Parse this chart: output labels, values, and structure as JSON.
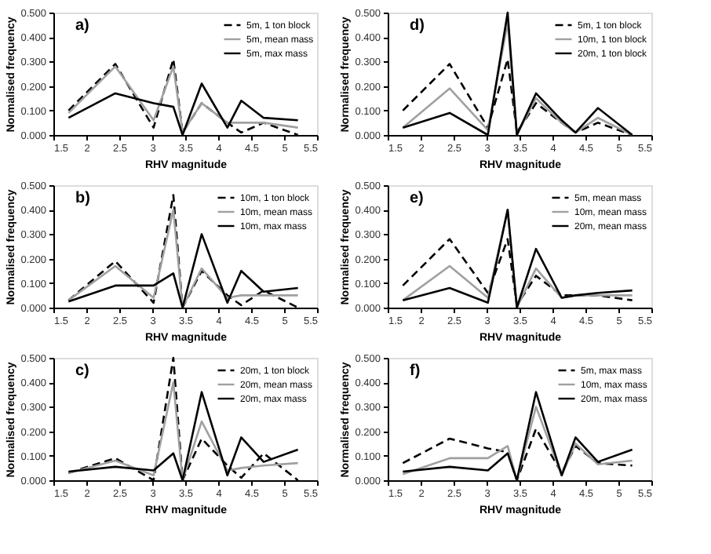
{
  "chart_data": [
    {
      "type": "line",
      "annotations": [
        {
          "text": "a)"
        }
      ],
      "xlabel": "RHV magnitude",
      "ylabel": "Normalised frequency",
      "x": [
        1.73,
        2.44,
        3.02,
        3.32,
        3.46,
        3.75,
        4.14,
        4.35,
        4.69,
        5.21
      ],
      "xlim": [
        1.5,
        5.5
      ],
      "xticks": [
        1.5,
        2,
        2.5,
        3,
        3.5,
        4,
        4.5,
        5,
        5.5
      ],
      "ylim": [
        0,
        0.5
      ],
      "yticks": [
        {
          "value": 0,
          "label": "0.000"
        },
        {
          "value": 0.1,
          "label": "0.100"
        },
        {
          "value": 0.2,
          "label": "0.200"
        },
        {
          "value": 0.3,
          "label": "0.300"
        },
        {
          "value": 0.4,
          "label": "0.400"
        },
        {
          "value": 0.5,
          "label": "0.500"
        }
      ],
      "grid": false,
      "legend": "top right",
      "series": [
        {
          "name": "5m, 1 ton block",
          "color": "#000000",
          "line_style": "dashed",
          "values": [
            0.1,
            0.29,
            0.03,
            0.31,
            0.01,
            0.13,
            0.05,
            0.01,
            0.05,
            0.0
          ]
        },
        {
          "name": "5m, mean mass",
          "color": "#a0a0a0",
          "line_style": "solid",
          "values": [
            0.09,
            0.28,
            0.06,
            0.28,
            0.01,
            0.13,
            0.05,
            0.05,
            0.05,
            0.03
          ]
        },
        {
          "name": "5m, max mass",
          "color": "#000000",
          "line_style": "solid",
          "values": [
            0.07,
            0.17,
            0.13,
            0.115,
            0.0,
            0.21,
            0.03,
            0.14,
            0.07,
            0.06
          ]
        }
      ]
    },
    {
      "type": "line",
      "annotations": [
        {
          "text": "d)"
        }
      ],
      "xlabel": "RHV magnitude",
      "ylabel": "Normalised frequency",
      "x": [
        1.73,
        2.44,
        3.02,
        3.32,
        3.46,
        3.75,
        4.14,
        4.35,
        4.69,
        5.21
      ],
      "xlim": [
        1.5,
        5.5
      ],
      "xticks": [
        1.5,
        2,
        2.5,
        3,
        3.5,
        4,
        4.5,
        5,
        5.5
      ],
      "ylim": [
        0,
        0.5
      ],
      "yticks": [
        {
          "value": 0,
          "label": "0.000"
        },
        {
          "value": 0.1,
          "label": "0.100"
        },
        {
          "value": 0.2,
          "label": "0.200"
        },
        {
          "value": 0.3,
          "label": "0.300"
        },
        {
          "value": 0.4,
          "label": "0.400"
        },
        {
          "value": 0.5,
          "label": "0.500"
        }
      ],
      "grid": false,
      "legend": "top right",
      "series": [
        {
          "name": "5m, 1 ton block",
          "color": "#000000",
          "line_style": "dashed",
          "values": [
            0.1,
            0.29,
            0.03,
            0.31,
            0.01,
            0.13,
            0.05,
            0.01,
            0.05,
            0.0
          ]
        },
        {
          "name": "10m, 1 ton block",
          "color": "#a0a0a0",
          "line_style": "solid",
          "values": [
            0.03,
            0.19,
            0.02,
            0.46,
            0.0,
            0.15,
            0.05,
            0.01,
            0.07,
            0.0
          ]
        },
        {
          "name": "20m, 1 ton block",
          "color": "#000000",
          "line_style": "solid",
          "values": [
            0.03,
            0.09,
            0.0,
            0.5,
            0.0,
            0.17,
            0.06,
            0.01,
            0.11,
            0.0
          ]
        }
      ]
    },
    {
      "type": "line",
      "annotations": [
        {
          "text": "b)"
        }
      ],
      "xlabel": "RHV magnitude",
      "ylabel": "Normalised frequency",
      "x": [
        1.73,
        2.44,
        3.02,
        3.32,
        3.46,
        3.75,
        4.14,
        4.35,
        4.69,
        5.21
      ],
      "xlim": [
        1.5,
        5.5
      ],
      "xticks": [
        1.5,
        2,
        2.5,
        3,
        3.5,
        4,
        4.5,
        5,
        5.5
      ],
      "ylim": [
        0,
        0.5
      ],
      "yticks": [
        {
          "value": 0,
          "label": "0.000"
        },
        {
          "value": 0.1,
          "label": "0.100"
        },
        {
          "value": 0.2,
          "label": "0.200"
        },
        {
          "value": 0.3,
          "label": "0.300"
        },
        {
          "value": 0.4,
          "label": "0.400"
        },
        {
          "value": 0.5,
          "label": "0.500"
        }
      ],
      "grid": false,
      "legend": "top right",
      "series": [
        {
          "name": "10m, 1 ton block",
          "color": "#000000",
          "line_style": "dashed",
          "values": [
            0.03,
            0.19,
            0.02,
            0.46,
            0.0,
            0.15,
            0.05,
            0.01,
            0.07,
            0.0
          ]
        },
        {
          "name": "10m, mean mass",
          "color": "#a0a0a0",
          "line_style": "solid",
          "values": [
            0.03,
            0.17,
            0.04,
            0.4,
            0.0,
            0.16,
            0.04,
            0.05,
            0.05,
            0.05
          ]
        },
        {
          "name": "10m, max mass",
          "color": "#000000",
          "line_style": "solid",
          "values": [
            0.025,
            0.09,
            0.09,
            0.14,
            0.0,
            0.3,
            0.02,
            0.15,
            0.065,
            0.08
          ]
        }
      ]
    },
    {
      "type": "line",
      "annotations": [
        {
          "text": "e)"
        }
      ],
      "xlabel": "RHV magnitude",
      "ylabel": "Normalised frequency",
      "x": [
        1.73,
        2.44,
        3.02,
        3.32,
        3.46,
        3.75,
        4.14,
        4.35,
        4.69,
        5.21
      ],
      "xlim": [
        1.5,
        5.5
      ],
      "xticks": [
        1.5,
        2,
        2.5,
        3,
        3.5,
        4,
        4.5,
        5,
        5.5
      ],
      "ylim": [
        0,
        0.5
      ],
      "yticks": [
        {
          "value": 0,
          "label": "0.000"
        },
        {
          "value": 0.1,
          "label": "0.100"
        },
        {
          "value": 0.2,
          "label": "0.200"
        },
        {
          "value": 0.3,
          "label": "0.300"
        },
        {
          "value": 0.4,
          "label": "0.400"
        },
        {
          "value": 0.5,
          "label": "0.500"
        }
      ],
      "grid": false,
      "legend": "top right",
      "series": [
        {
          "name": "5m, mean mass",
          "color": "#000000",
          "line_style": "dashed",
          "values": [
            0.09,
            0.28,
            0.06,
            0.28,
            0.01,
            0.13,
            0.05,
            0.05,
            0.05,
            0.03
          ]
        },
        {
          "name": "10m, mean mass",
          "color": "#a0a0a0",
          "line_style": "solid",
          "values": [
            0.03,
            0.17,
            0.04,
            0.4,
            0.0,
            0.16,
            0.04,
            0.05,
            0.05,
            0.05
          ]
        },
        {
          "name": "20m, mean mass",
          "color": "#000000",
          "line_style": "solid",
          "values": [
            0.03,
            0.08,
            0.02,
            0.4,
            0.0,
            0.24,
            0.04,
            0.05,
            0.06,
            0.07
          ]
        }
      ]
    },
    {
      "type": "line",
      "annotations": [
        {
          "text": "c)"
        }
      ],
      "xlabel": "RHV magnitude",
      "ylabel": "Normalised frequency",
      "x": [
        1.73,
        2.44,
        3.02,
        3.32,
        3.46,
        3.75,
        4.14,
        4.35,
        4.69,
        5.21
      ],
      "xlim": [
        1.5,
        5.5
      ],
      "xticks": [
        1.5,
        2,
        2.5,
        3,
        3.5,
        4,
        4.5,
        5,
        5.5
      ],
      "ylim": [
        0,
        0.5
      ],
      "yticks": [
        {
          "value": 0,
          "label": "0.000"
        },
        {
          "value": 0.1,
          "label": "0.100"
        },
        {
          "value": 0.2,
          "label": "0.200"
        },
        {
          "value": 0.3,
          "label": "0.300"
        },
        {
          "value": 0.4,
          "label": "0.400"
        },
        {
          "value": 0.5,
          "label": "0.500"
        }
      ],
      "grid": false,
      "legend": "top right",
      "series": [
        {
          "name": "20m, 1 ton block",
          "color": "#000000",
          "line_style": "dashed",
          "values": [
            0.03,
            0.09,
            0.0,
            0.5,
            0.0,
            0.17,
            0.06,
            0.01,
            0.11,
            0.0
          ]
        },
        {
          "name": "20m, mean mass",
          "color": "#a0a0a0",
          "line_style": "solid",
          "values": [
            0.03,
            0.08,
            0.02,
            0.4,
            0.0,
            0.24,
            0.04,
            0.05,
            0.06,
            0.07
          ]
        },
        {
          "name": "20m, max mass",
          "color": "#000000",
          "line_style": "solid",
          "values": [
            0.035,
            0.055,
            0.04,
            0.11,
            0.0,
            0.36,
            0.02,
            0.175,
            0.075,
            0.125
          ]
        }
      ]
    },
    {
      "type": "line",
      "annotations": [
        {
          "text": "f)"
        }
      ],
      "xlabel": "RHV magnitude",
      "ylabel": "Normalised frequency",
      "x": [
        1.73,
        2.44,
        3.02,
        3.32,
        3.46,
        3.75,
        4.14,
        4.35,
        4.69,
        5.21
      ],
      "xlim": [
        1.5,
        5.5
      ],
      "xticks": [
        1.5,
        2,
        2.5,
        3,
        3.5,
        4,
        4.5,
        5,
        5.5
      ],
      "ylim": [
        0,
        0.5
      ],
      "yticks": [
        {
          "value": 0,
          "label": "0.000"
        },
        {
          "value": 0.1,
          "label": "0.100"
        },
        {
          "value": 0.2,
          "label": "0.200"
        },
        {
          "value": 0.3,
          "label": "0.300"
        },
        {
          "value": 0.4,
          "label": "0.400"
        },
        {
          "value": 0.5,
          "label": "0.500"
        }
      ],
      "grid": false,
      "legend": "top right",
      "series": [
        {
          "name": "5m, max mass",
          "color": "#000000",
          "line_style": "dashed",
          "values": [
            0.07,
            0.17,
            0.13,
            0.115,
            0.0,
            0.21,
            0.03,
            0.14,
            0.07,
            0.06
          ]
        },
        {
          "name": "10m, max mass",
          "color": "#a0a0a0",
          "line_style": "solid",
          "values": [
            0.025,
            0.09,
            0.09,
            0.14,
            0.0,
            0.3,
            0.02,
            0.15,
            0.065,
            0.08
          ]
        },
        {
          "name": "20m, max mass",
          "color": "#000000",
          "line_style": "solid",
          "values": [
            0.035,
            0.055,
            0.04,
            0.11,
            0.0,
            0.36,
            0.02,
            0.175,
            0.075,
            0.125
          ]
        }
      ]
    }
  ]
}
